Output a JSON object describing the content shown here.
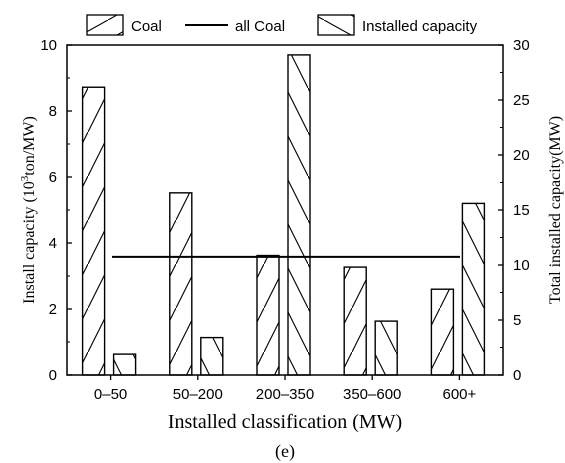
{
  "chart_data": {
    "type": "bar",
    "categories": [
      "0–50",
      "50–200",
      "200–350",
      "350–600",
      "600+"
    ],
    "series": [
      {
        "name": "Coal",
        "axis": "left",
        "values": [
          8.72,
          5.52,
          3.62,
          3.27,
          2.6
        ]
      },
      {
        "name": "Installed capacity",
        "axis": "right",
        "values": [
          1.9,
          3.4,
          29.1,
          4.9,
          15.6
        ]
      }
    ],
    "reference_lines": [
      {
        "name": "all Coal",
        "axis": "left",
        "value": 3.58
      }
    ],
    "left_axis": {
      "label_main": "Install capacity (10",
      "label_sup": "3",
      "label_end": "ton/MW)",
      "ylim": [
        0,
        10
      ],
      "ticks": [
        "0",
        "2",
        "4",
        "6",
        "8",
        "10"
      ]
    },
    "right_axis": {
      "label": "Total installed capacity(MW)",
      "ylim": [
        0,
        30
      ],
      "ticks": [
        "0",
        "5",
        "10",
        "15",
        "20",
        "25",
        "30"
      ]
    },
    "xlabel": "Installed classification (MW)",
    "caption": "(e)",
    "legend": {
      "position": "top",
      "entries": [
        "Coal",
        "all Coal",
        "Installed capacity"
      ]
    },
    "grid": false
  }
}
